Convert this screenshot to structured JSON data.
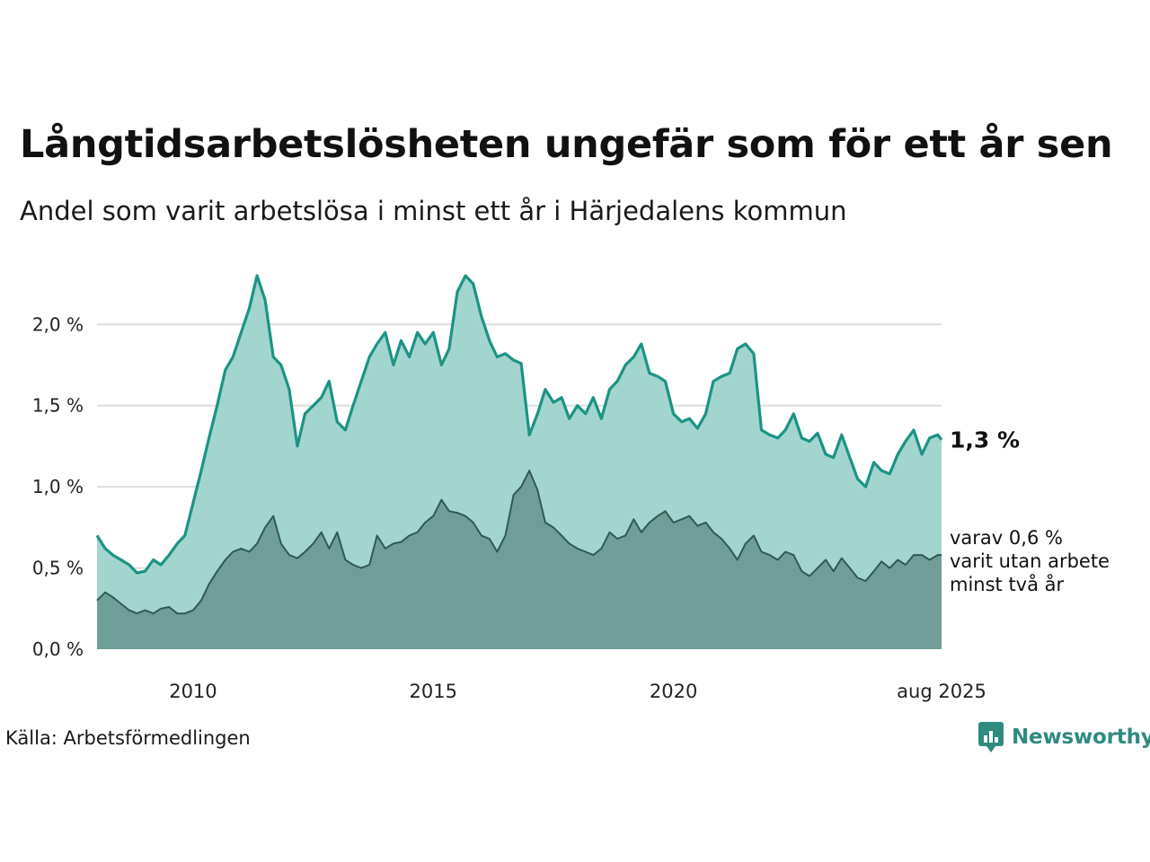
{
  "title": "Långtidsarbetslösheten ungefär som för ett år sen",
  "subtitle": "Andel som varit arbetslösa i minst ett år i Härjedalens kommun",
  "source": "Källa: Arbetsförmedlingen",
  "logo": {
    "text": "Newsworthy",
    "icon": "newsworthy-logo-icon"
  },
  "colors": {
    "main_line": "#1b9483",
    "main_fill": "#a3d5cf",
    "sub_line": "#2f5a53",
    "sub_fill": "#6f9e98",
    "grid": "#dddddd",
    "logo": "#2e8b7e"
  },
  "chart_data": {
    "type": "area",
    "title": "Långtidsarbetslösheten ungefär som för ett år sen",
    "subtitle": "Andel som varit arbetslösa i minst ett år i Härjedalens kommun",
    "x_range": [
      "2008-01",
      "2025-08"
    ],
    "xlim": [
      2008.0,
      2025.58
    ],
    "ylim": [
      0,
      2.35
    ],
    "grid": true,
    "x_ticks": [
      {
        "value": 2010,
        "label": "2010"
      },
      {
        "value": 2015,
        "label": "2015"
      },
      {
        "value": 2020,
        "label": "2020"
      },
      {
        "value": 2025.58,
        "label": "aug 2025"
      }
    ],
    "y_ticks": [
      {
        "value": 0.0,
        "label": "0,0 %"
      },
      {
        "value": 0.5,
        "label": "0,5 %"
      },
      {
        "value": 1.0,
        "label": "1,0 %"
      },
      {
        "value": 1.5,
        "label": "1,5 %"
      },
      {
        "value": 2.0,
        "label": "2,0 %"
      }
    ],
    "annotations": {
      "main_last": "1,3 %",
      "sub_last": [
        "varav 0,6 %",
        "varit utan arbete",
        "minst två år"
      ]
    },
    "series": [
      {
        "key": "main",
        "points": [
          [
            2008.0,
            0.7
          ],
          [
            2008.17,
            0.62
          ],
          [
            2008.33,
            0.58
          ],
          [
            2008.5,
            0.55
          ],
          [
            2008.67,
            0.52
          ],
          [
            2008.83,
            0.47
          ],
          [
            2009.0,
            0.48
          ],
          [
            2009.17,
            0.55
          ],
          [
            2009.33,
            0.52
          ],
          [
            2009.5,
            0.58
          ],
          [
            2009.67,
            0.65
          ],
          [
            2009.83,
            0.7
          ],
          [
            2010.0,
            0.9
          ],
          [
            2010.17,
            1.1
          ],
          [
            2010.33,
            1.3
          ],
          [
            2010.5,
            1.5
          ],
          [
            2010.67,
            1.72
          ],
          [
            2010.83,
            1.8
          ],
          [
            2011.0,
            1.95
          ],
          [
            2011.17,
            2.1
          ],
          [
            2011.33,
            2.3
          ],
          [
            2011.5,
            2.15
          ],
          [
            2011.67,
            1.8
          ],
          [
            2011.83,
            1.75
          ],
          [
            2012.0,
            1.6
          ],
          [
            2012.17,
            1.25
          ],
          [
            2012.33,
            1.45
          ],
          [
            2012.5,
            1.5
          ],
          [
            2012.67,
            1.55
          ],
          [
            2012.83,
            1.65
          ],
          [
            2013.0,
            1.4
          ],
          [
            2013.17,
            1.35
          ],
          [
            2013.33,
            1.5
          ],
          [
            2013.5,
            1.65
          ],
          [
            2013.67,
            1.8
          ],
          [
            2013.83,
            1.88
          ],
          [
            2014.0,
            1.95
          ],
          [
            2014.17,
            1.75
          ],
          [
            2014.33,
            1.9
          ],
          [
            2014.5,
            1.8
          ],
          [
            2014.67,
            1.95
          ],
          [
            2014.83,
            1.88
          ],
          [
            2015.0,
            1.95
          ],
          [
            2015.17,
            1.75
          ],
          [
            2015.33,
            1.85
          ],
          [
            2015.5,
            2.2
          ],
          [
            2015.67,
            2.3
          ],
          [
            2015.83,
            2.25
          ],
          [
            2016.0,
            2.05
          ],
          [
            2016.17,
            1.9
          ],
          [
            2016.33,
            1.8
          ],
          [
            2016.5,
            1.82
          ],
          [
            2016.67,
            1.78
          ],
          [
            2016.83,
            1.76
          ],
          [
            2017.0,
            1.32
          ],
          [
            2017.17,
            1.45
          ],
          [
            2017.33,
            1.6
          ],
          [
            2017.5,
            1.52
          ],
          [
            2017.67,
            1.55
          ],
          [
            2017.83,
            1.42
          ],
          [
            2018.0,
            1.5
          ],
          [
            2018.17,
            1.45
          ],
          [
            2018.33,
            1.55
          ],
          [
            2018.5,
            1.42
          ],
          [
            2018.67,
            1.6
          ],
          [
            2018.83,
            1.65
          ],
          [
            2019.0,
            1.75
          ],
          [
            2019.17,
            1.8
          ],
          [
            2019.33,
            1.88
          ],
          [
            2019.5,
            1.7
          ],
          [
            2019.67,
            1.68
          ],
          [
            2019.83,
            1.65
          ],
          [
            2020.0,
            1.45
          ],
          [
            2020.17,
            1.4
          ],
          [
            2020.33,
            1.42
          ],
          [
            2020.5,
            1.36
          ],
          [
            2020.67,
            1.45
          ],
          [
            2020.83,
            1.65
          ],
          [
            2021.0,
            1.68
          ],
          [
            2021.17,
            1.7
          ],
          [
            2021.33,
            1.85
          ],
          [
            2021.5,
            1.88
          ],
          [
            2021.67,
            1.82
          ],
          [
            2021.83,
            1.35
          ],
          [
            2022.0,
            1.32
          ],
          [
            2022.17,
            1.3
          ],
          [
            2022.33,
            1.35
          ],
          [
            2022.5,
            1.45
          ],
          [
            2022.67,
            1.3
          ],
          [
            2022.83,
            1.28
          ],
          [
            2023.0,
            1.33
          ],
          [
            2023.17,
            1.2
          ],
          [
            2023.33,
            1.18
          ],
          [
            2023.5,
            1.32
          ],
          [
            2023.67,
            1.18
          ],
          [
            2023.83,
            1.05
          ],
          [
            2024.0,
            1.0
          ],
          [
            2024.17,
            1.15
          ],
          [
            2024.33,
            1.1
          ],
          [
            2024.5,
            1.08
          ],
          [
            2024.67,
            1.2
          ],
          [
            2024.83,
            1.28
          ],
          [
            2025.0,
            1.35
          ],
          [
            2025.17,
            1.2
          ],
          [
            2025.33,
            1.3
          ],
          [
            2025.5,
            1.32
          ],
          [
            2025.58,
            1.29
          ]
        ]
      },
      {
        "key": "sub",
        "points": [
          [
            2008.0,
            0.3
          ],
          [
            2008.17,
            0.35
          ],
          [
            2008.33,
            0.32
          ],
          [
            2008.5,
            0.28
          ],
          [
            2008.67,
            0.24
          ],
          [
            2008.83,
            0.22
          ],
          [
            2009.0,
            0.24
          ],
          [
            2009.17,
            0.22
          ],
          [
            2009.33,
            0.25
          ],
          [
            2009.5,
            0.26
          ],
          [
            2009.67,
            0.22
          ],
          [
            2009.83,
            0.22
          ],
          [
            2010.0,
            0.24
          ],
          [
            2010.17,
            0.3
          ],
          [
            2010.33,
            0.4
          ],
          [
            2010.5,
            0.48
          ],
          [
            2010.67,
            0.55
          ],
          [
            2010.83,
            0.6
          ],
          [
            2011.0,
            0.62
          ],
          [
            2011.17,
            0.6
          ],
          [
            2011.33,
            0.65
          ],
          [
            2011.5,
            0.75
          ],
          [
            2011.67,
            0.82
          ],
          [
            2011.83,
            0.65
          ],
          [
            2012.0,
            0.58
          ],
          [
            2012.17,
            0.56
          ],
          [
            2012.33,
            0.6
          ],
          [
            2012.5,
            0.65
          ],
          [
            2012.67,
            0.72
          ],
          [
            2012.83,
            0.62
          ],
          [
            2013.0,
            0.72
          ],
          [
            2013.17,
            0.55
          ],
          [
            2013.33,
            0.52
          ],
          [
            2013.5,
            0.5
          ],
          [
            2013.67,
            0.52
          ],
          [
            2013.83,
            0.7
          ],
          [
            2014.0,
            0.62
          ],
          [
            2014.17,
            0.65
          ],
          [
            2014.33,
            0.66
          ],
          [
            2014.5,
            0.7
          ],
          [
            2014.67,
            0.72
          ],
          [
            2014.83,
            0.78
          ],
          [
            2015.0,
            0.82
          ],
          [
            2015.17,
            0.92
          ],
          [
            2015.33,
            0.85
          ],
          [
            2015.5,
            0.84
          ],
          [
            2015.67,
            0.82
          ],
          [
            2015.83,
            0.78
          ],
          [
            2016.0,
            0.7
          ],
          [
            2016.17,
            0.68
          ],
          [
            2016.33,
            0.6
          ],
          [
            2016.5,
            0.7
          ],
          [
            2016.67,
            0.95
          ],
          [
            2016.83,
            1.0
          ],
          [
            2017.0,
            1.1
          ],
          [
            2017.17,
            0.98
          ],
          [
            2017.33,
            0.78
          ],
          [
            2017.5,
            0.75
          ],
          [
            2017.67,
            0.7
          ],
          [
            2017.83,
            0.65
          ],
          [
            2018.0,
            0.62
          ],
          [
            2018.17,
            0.6
          ],
          [
            2018.33,
            0.58
          ],
          [
            2018.5,
            0.62
          ],
          [
            2018.67,
            0.72
          ],
          [
            2018.83,
            0.68
          ],
          [
            2019.0,
            0.7
          ],
          [
            2019.17,
            0.8
          ],
          [
            2019.33,
            0.72
          ],
          [
            2019.5,
            0.78
          ],
          [
            2019.67,
            0.82
          ],
          [
            2019.83,
            0.85
          ],
          [
            2020.0,
            0.78
          ],
          [
            2020.17,
            0.8
          ],
          [
            2020.33,
            0.82
          ],
          [
            2020.5,
            0.76
          ],
          [
            2020.67,
            0.78
          ],
          [
            2020.83,
            0.72
          ],
          [
            2021.0,
            0.68
          ],
          [
            2021.17,
            0.62
          ],
          [
            2021.33,
            0.55
          ],
          [
            2021.5,
            0.65
          ],
          [
            2021.67,
            0.7
          ],
          [
            2021.83,
            0.6
          ],
          [
            2022.0,
            0.58
          ],
          [
            2022.17,
            0.55
          ],
          [
            2022.33,
            0.6
          ],
          [
            2022.5,
            0.58
          ],
          [
            2022.67,
            0.48
          ],
          [
            2022.83,
            0.45
          ],
          [
            2023.0,
            0.5
          ],
          [
            2023.17,
            0.55
          ],
          [
            2023.33,
            0.48
          ],
          [
            2023.5,
            0.56
          ],
          [
            2023.67,
            0.5
          ],
          [
            2023.83,
            0.44
          ],
          [
            2024.0,
            0.42
          ],
          [
            2024.17,
            0.48
          ],
          [
            2024.33,
            0.54
          ],
          [
            2024.5,
            0.5
          ],
          [
            2024.67,
            0.55
          ],
          [
            2024.83,
            0.52
          ],
          [
            2025.0,
            0.58
          ],
          [
            2025.17,
            0.58
          ],
          [
            2025.33,
            0.55
          ],
          [
            2025.5,
            0.58
          ],
          [
            2025.58,
            0.58
          ]
        ]
      }
    ]
  }
}
